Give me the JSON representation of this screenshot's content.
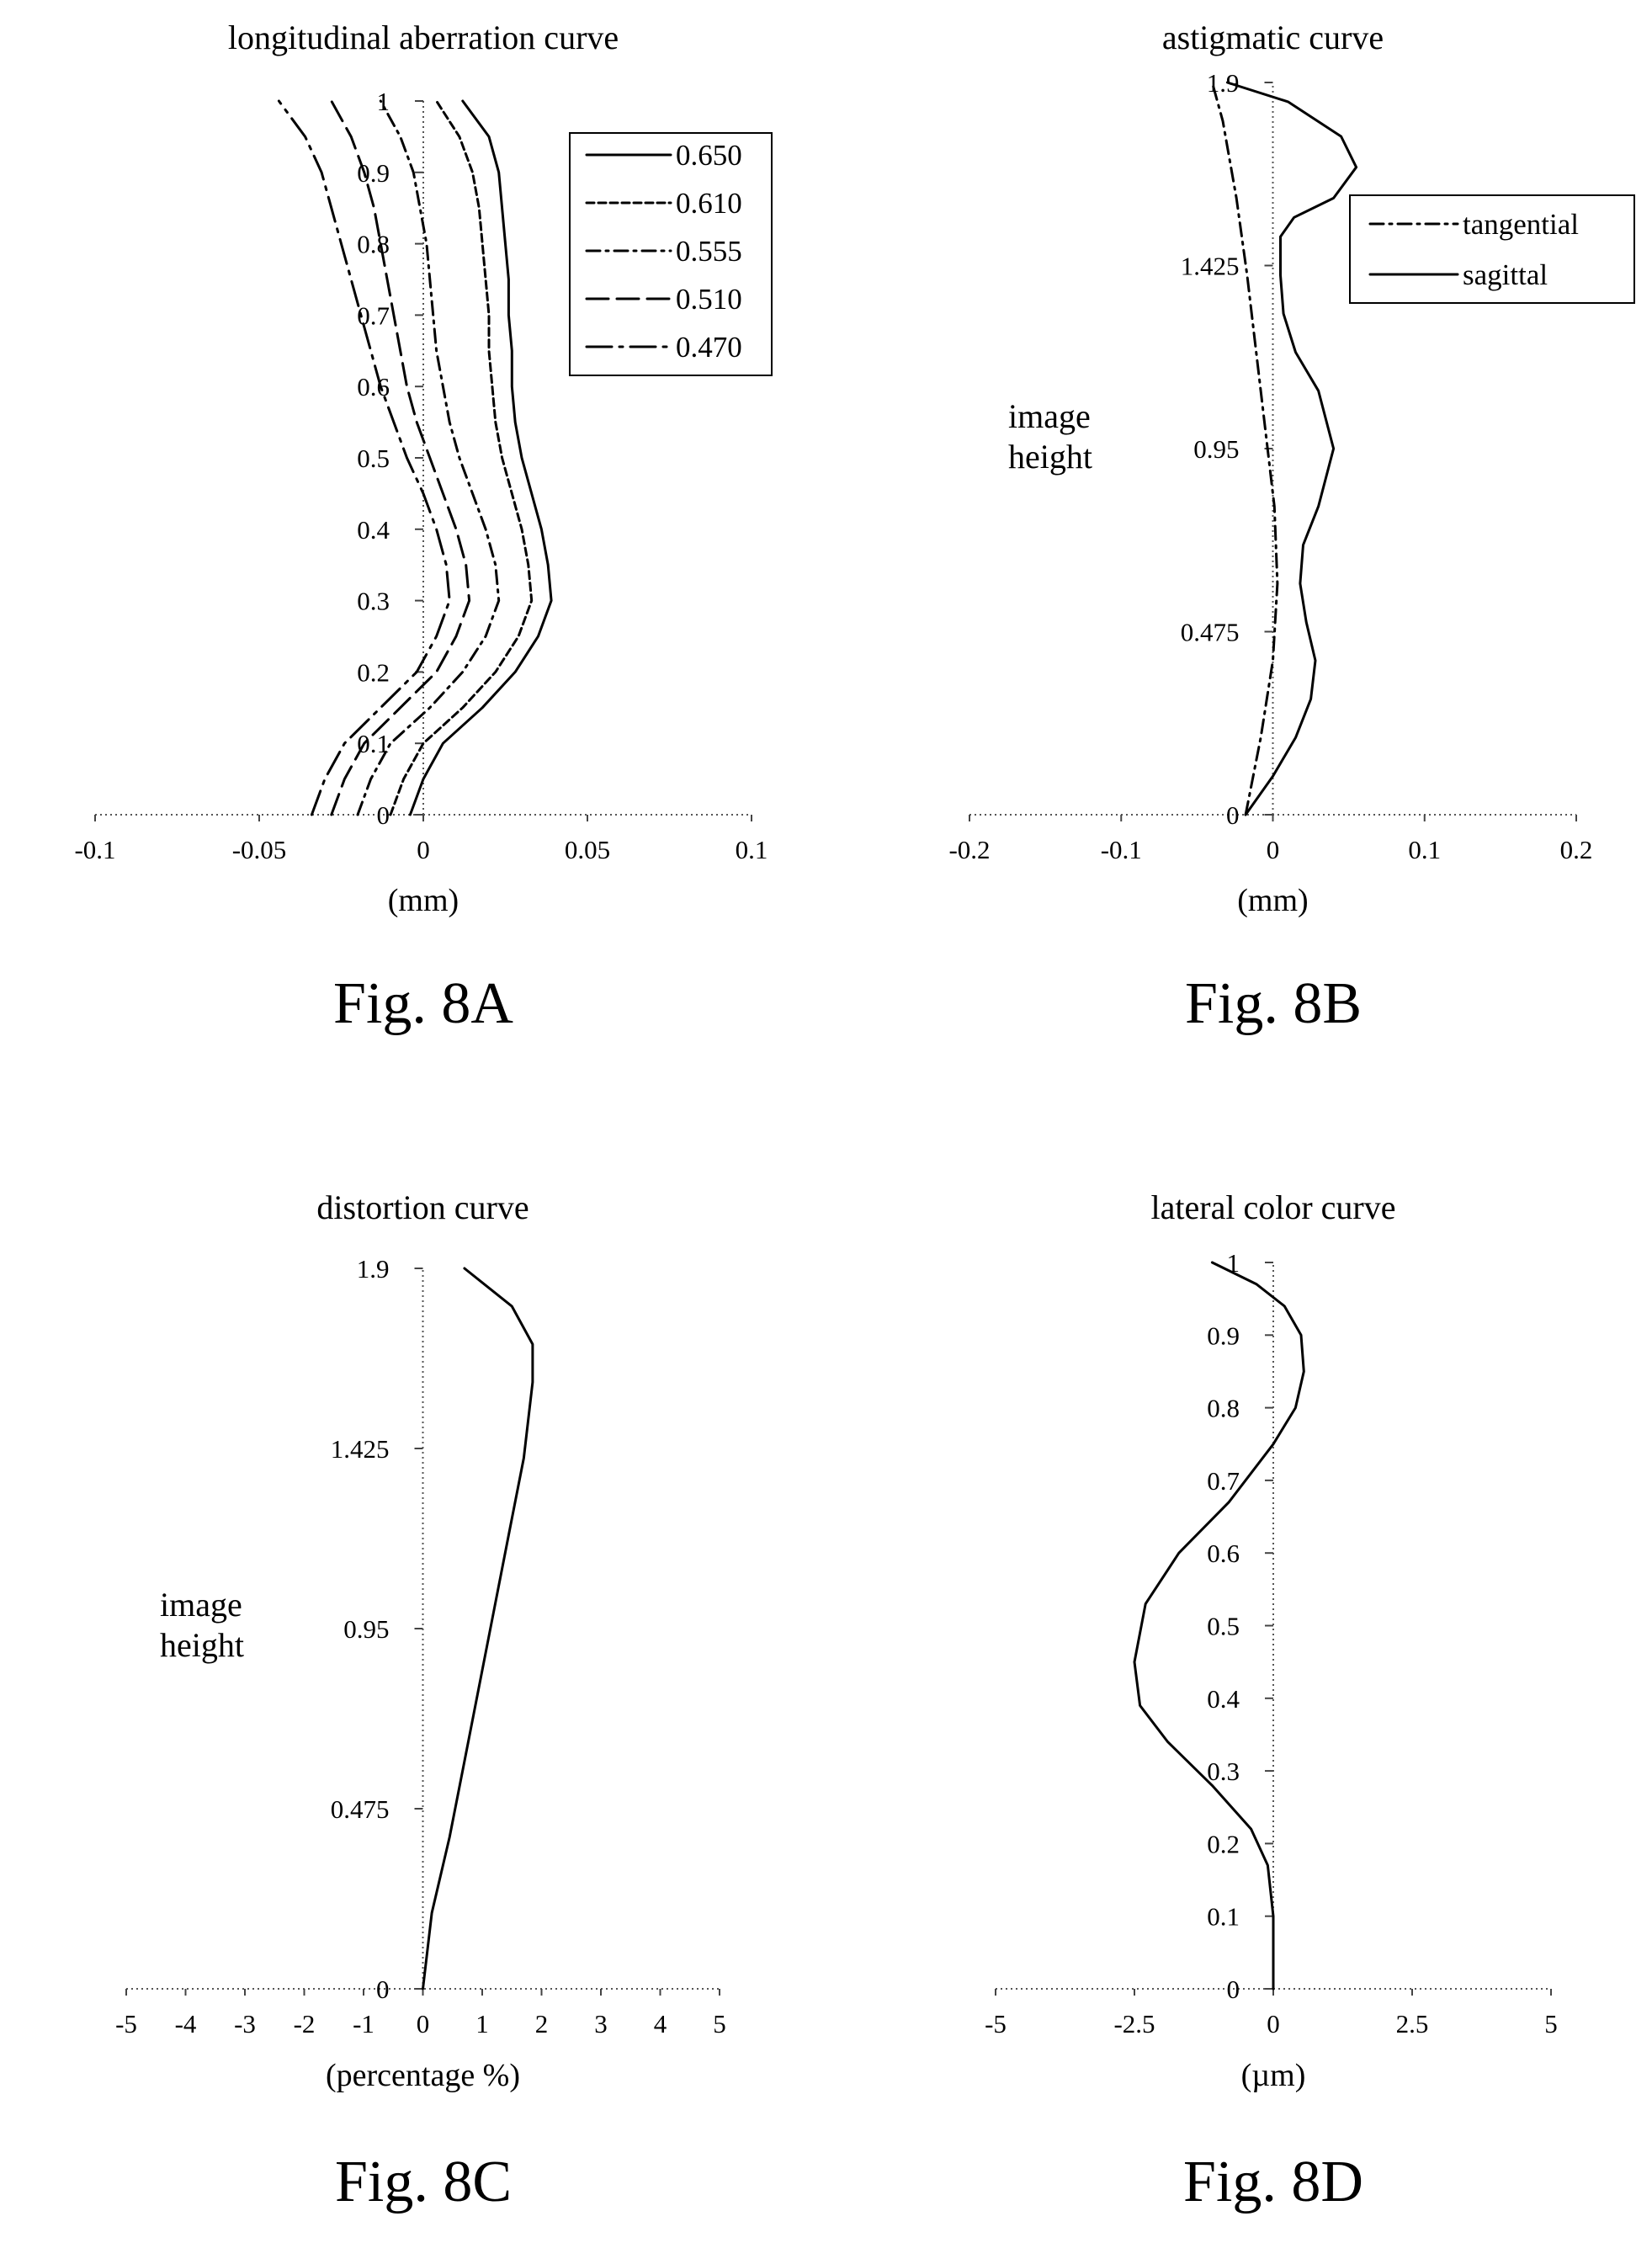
{
  "chart_data": [
    {
      "id": "fig8a",
      "type": "line",
      "title": "longitudinal aberration curve",
      "xlabel": "(mm)",
      "caption": "Fig. 8A",
      "xlim": [
        -0.1,
        0.1
      ],
      "ylim": [
        0,
        1
      ],
      "xticks": [
        "-0.1",
        "-0.05",
        "0",
        "0.05",
        "0.1"
      ],
      "yticks": [
        "0",
        "0.1",
        "0.2",
        "0.3",
        "0.4",
        "0.5",
        "0.6",
        "0.7",
        "0.8",
        "0.9",
        "1"
      ],
      "legend_position": "top-right",
      "series": [
        {
          "name": "0.650",
          "dash": "solid",
          "points": [
            [
              -0.004,
              0
            ],
            [
              0,
              0.05
            ],
            [
              0.006,
              0.1
            ],
            [
              0.018,
              0.15
            ],
            [
              0.028,
              0.2
            ],
            [
              0.035,
              0.25
            ],
            [
              0.039,
              0.3
            ],
            [
              0.038,
              0.35
            ],
            [
              0.036,
              0.4
            ],
            [
              0.033,
              0.45
            ],
            [
              0.03,
              0.5
            ],
            [
              0.028,
              0.55
            ],
            [
              0.027,
              0.6
            ],
            [
              0.027,
              0.65
            ],
            [
              0.026,
              0.7
            ],
            [
              0.026,
              0.75
            ],
            [
              0.025,
              0.8
            ],
            [
              0.024,
              0.85
            ],
            [
              0.023,
              0.9
            ],
            [
              0.02,
              0.95
            ],
            [
              0.012,
              1.0
            ]
          ]
        },
        {
          "name": "0.610",
          "dash": "short-dash",
          "points": [
            [
              -0.01,
              0
            ],
            [
              -0.006,
              0.05
            ],
            [
              0,
              0.1
            ],
            [
              0.012,
              0.15
            ],
            [
              0.022,
              0.2
            ],
            [
              0.029,
              0.25
            ],
            [
              0.033,
              0.3
            ],
            [
              0.032,
              0.35
            ],
            [
              0.03,
              0.4
            ],
            [
              0.027,
              0.45
            ],
            [
              0.024,
              0.5
            ],
            [
              0.022,
              0.55
            ],
            [
              0.021,
              0.6
            ],
            [
              0.02,
              0.65
            ],
            [
              0.02,
              0.7
            ],
            [
              0.019,
              0.75
            ],
            [
              0.018,
              0.8
            ],
            [
              0.017,
              0.85
            ],
            [
              0.015,
              0.9
            ],
            [
              0.011,
              0.95
            ],
            [
              0.004,
              1.0
            ]
          ]
        },
        {
          "name": "0.555",
          "dash": "dash-dot",
          "points": [
            [
              -0.02,
              0
            ],
            [
              -0.016,
              0.05
            ],
            [
              -0.01,
              0.1
            ],
            [
              0.002,
              0.15
            ],
            [
              0.012,
              0.2
            ],
            [
              0.019,
              0.25
            ],
            [
              0.023,
              0.3
            ],
            [
              0.022,
              0.35
            ],
            [
              0.019,
              0.4
            ],
            [
              0.015,
              0.45
            ],
            [
              0.011,
              0.5
            ],
            [
              0.008,
              0.55
            ],
            [
              0.006,
              0.6
            ],
            [
              0.004,
              0.65
            ],
            [
              0.003,
              0.7
            ],
            [
              0.002,
              0.75
            ],
            [
              0.001,
              0.8
            ],
            [
              -0.001,
              0.85
            ],
            [
              -0.003,
              0.9
            ],
            [
              -0.007,
              0.95
            ],
            [
              -0.013,
              1.0
            ]
          ]
        },
        {
          "name": "0.510",
          "dash": "long-dash",
          "points": [
            [
              -0.028,
              0
            ],
            [
              -0.024,
              0.05
            ],
            [
              -0.018,
              0.1
            ],
            [
              -0.007,
              0.15
            ],
            [
              0.004,
              0.2
            ],
            [
              0.01,
              0.25
            ],
            [
              0.014,
              0.3
            ],
            [
              0.013,
              0.35
            ],
            [
              0.01,
              0.4
            ],
            [
              0.006,
              0.45
            ],
            [
              0.002,
              0.5
            ],
            [
              -0.002,
              0.55
            ],
            [
              -0.005,
              0.6
            ],
            [
              -0.007,
              0.65
            ],
            [
              -0.009,
              0.7
            ],
            [
              -0.011,
              0.75
            ],
            [
              -0.013,
              0.8
            ],
            [
              -0.015,
              0.85
            ],
            [
              -0.018,
              0.9
            ],
            [
              -0.022,
              0.95
            ],
            [
              -0.028,
              1.0
            ]
          ]
        },
        {
          "name": "0.470",
          "dash": "long-dash-dot",
          "points": [
            [
              -0.034,
              0
            ],
            [
              -0.03,
              0.05
            ],
            [
              -0.024,
              0.1
            ],
            [
              -0.013,
              0.15
            ],
            [
              -0.002,
              0.2
            ],
            [
              0.004,
              0.25
            ],
            [
              0.008,
              0.3
            ],
            [
              0.007,
              0.35
            ],
            [
              0.004,
              0.4
            ],
            [
              0,
              0.45
            ],
            [
              -0.005,
              0.5
            ],
            [
              -0.009,
              0.55
            ],
            [
              -0.013,
              0.6
            ],
            [
              -0.016,
              0.65
            ],
            [
              -0.019,
              0.7
            ],
            [
              -0.022,
              0.75
            ],
            [
              -0.025,
              0.8
            ],
            [
              -0.028,
              0.85
            ],
            [
              -0.031,
              0.9
            ],
            [
              -0.036,
              0.95
            ],
            [
              -0.044,
              1.0
            ]
          ]
        }
      ]
    },
    {
      "id": "fig8b",
      "type": "line",
      "title": "astigmatic curve",
      "xlabel": "(mm)",
      "ylabel": "image height",
      "caption": "Fig. 8B",
      "xlim": [
        -0.2,
        0.2
      ],
      "ylim": [
        0,
        1.9
      ],
      "xticks": [
        "-0.2",
        "-0.1",
        "0",
        "0.1",
        "0.2"
      ],
      "yticks": [
        "0",
        "0.475",
        "0.95",
        "1.425",
        "1.9"
      ],
      "legend_position": "top-right",
      "series": [
        {
          "name": "tangential",
          "dash": "dash-dot",
          "points": [
            [
              -0.018,
              0
            ],
            [
              -0.008,
              0.2
            ],
            [
              0,
              0.4
            ],
            [
              0.003,
              0.6
            ],
            [
              0.001,
              0.8
            ],
            [
              -0.005,
              1.0
            ],
            [
              -0.011,
              1.2
            ],
            [
              -0.017,
              1.4
            ],
            [
              -0.024,
              1.6
            ],
            [
              -0.033,
              1.8
            ],
            [
              -0.04,
              1.9
            ]
          ]
        },
        {
          "name": "sagittal",
          "dash": "solid",
          "points": [
            [
              -0.018,
              0
            ],
            [
              0,
              0.1
            ],
            [
              0.015,
              0.2
            ],
            [
              0.025,
              0.3
            ],
            [
              0.028,
              0.4
            ],
            [
              0.022,
              0.5
            ],
            [
              0.018,
              0.6
            ],
            [
              0.02,
              0.7
            ],
            [
              0.03,
              0.8
            ],
            [
              0.04,
              0.95
            ],
            [
              0.03,
              1.1
            ],
            [
              0.015,
              1.2
            ],
            [
              0.007,
              1.3
            ],
            [
              0.005,
              1.4
            ],
            [
              0.005,
              1.5
            ],
            [
              0.014,
              1.55
            ],
            [
              0.04,
              1.6
            ],
            [
              0.055,
              1.68
            ],
            [
              0.045,
              1.76
            ],
            [
              0.01,
              1.85
            ],
            [
              -0.03,
              1.9
            ]
          ]
        }
      ]
    },
    {
      "id": "fig8c",
      "type": "line",
      "title": "distortion curve",
      "xlabel": "(percentage %)",
      "ylabel": "image height",
      "caption": "Fig. 8C",
      "xlim": [
        -5,
        5
      ],
      "ylim": [
        0,
        1.9
      ],
      "xticks": [
        "-5",
        "-4",
        "-3",
        "-2",
        "-1",
        "0",
        "1",
        "2",
        "3",
        "4",
        "5"
      ],
      "yticks": [
        "0",
        "0.475",
        "0.95",
        "1.425",
        "1.9"
      ],
      "series": [
        {
          "dash": "solid",
          "points": [
            [
              0,
              0
            ],
            [
              0.15,
              0.2
            ],
            [
              0.45,
              0.4
            ],
            [
              0.7,
              0.6
            ],
            [
              0.95,
              0.8
            ],
            [
              1.2,
              1.0
            ],
            [
              1.45,
              1.2
            ],
            [
              1.7,
              1.4
            ],
            [
              1.85,
              1.6
            ],
            [
              1.85,
              1.7
            ],
            [
              1.5,
              1.8
            ],
            [
              0.7,
              1.9
            ]
          ]
        }
      ]
    },
    {
      "id": "fig8d",
      "type": "line",
      "title": "lateral color curve",
      "xlabel": "(µm)",
      "caption": "Fig. 8D",
      "xlim": [
        -5,
        5
      ],
      "ylim": [
        0,
        1
      ],
      "xticks": [
        "-5",
        "-2.5",
        "0",
        "2.5",
        "5"
      ],
      "yticks": [
        "0",
        "0.1",
        "0.2",
        "0.3",
        "0.4",
        "0.5",
        "0.6",
        "0.7",
        "0.8",
        "0.9",
        "1"
      ],
      "series": [
        {
          "dash": "solid",
          "points": [
            [
              0,
              0
            ],
            [
              0,
              0.1
            ],
            [
              -0.1,
              0.17
            ],
            [
              -0.4,
              0.22
            ],
            [
              -1.1,
              0.28
            ],
            [
              -1.9,
              0.34
            ],
            [
              -2.4,
              0.39
            ],
            [
              -2.5,
              0.45
            ],
            [
              -2.3,
              0.53
            ],
            [
              -1.7,
              0.6
            ],
            [
              -0.8,
              0.67
            ],
            [
              0,
              0.75
            ],
            [
              0.4,
              0.8
            ],
            [
              0.55,
              0.85
            ],
            [
              0.5,
              0.9
            ],
            [
              0.2,
              0.94
            ],
            [
              -0.3,
              0.97
            ],
            [
              -1.1,
              1.0
            ]
          ]
        }
      ]
    }
  ]
}
